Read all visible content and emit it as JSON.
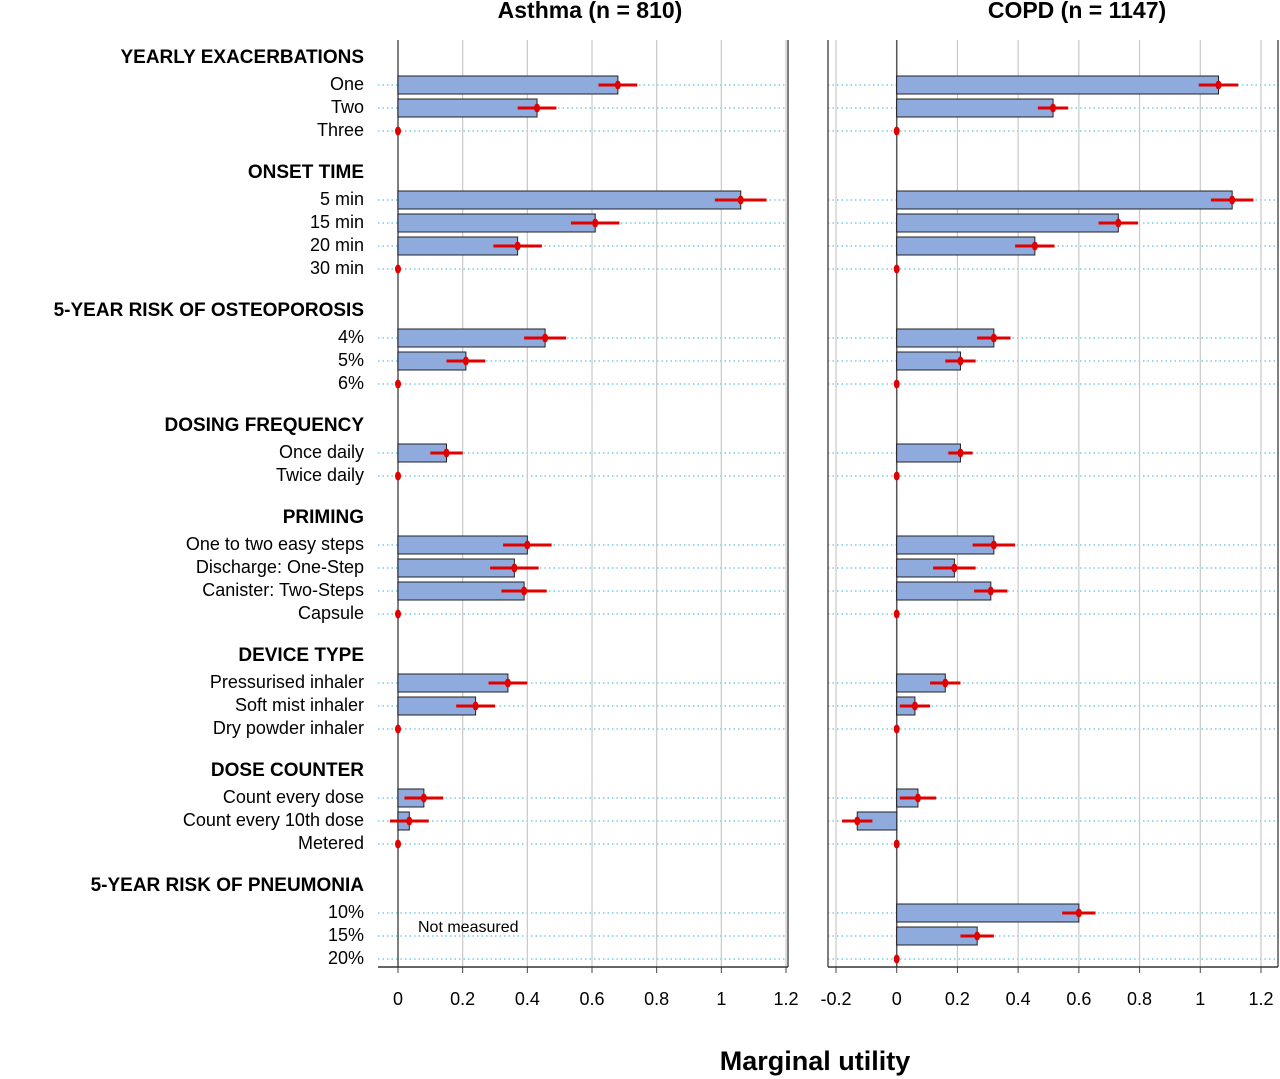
{
  "row_groups": [
    {
      "title": "YEARLY EXACERBATIONS",
      "categories": [
        "One",
        "Two",
        "Three"
      ]
    },
    {
      "title": "ONSET TIME",
      "categories": [
        "5 min",
        "15 min",
        "20 min",
        "30 min"
      ]
    },
    {
      "title": "5-YEAR RISK OF OSTEOPOROSIS",
      "categories": [
        "4%",
        "5%",
        "6%"
      ]
    },
    {
      "title": "DOSING FREQUENCY",
      "categories": [
        "Once daily",
        "Twice daily"
      ]
    },
    {
      "title": "PRIMING",
      "categories": [
        "One to two easy steps",
        "Discharge: One-Step",
        "Canister: Two-Steps",
        "Capsule"
      ]
    },
    {
      "title": "DEVICE TYPE",
      "categories": [
        "Pressurised inhaler",
        "Soft mist inhaler",
        "Dry powder inhaler"
      ]
    },
    {
      "title": "DOSE COUNTER",
      "categories": [
        "Count every dose",
        "Count every 10th dose",
        "Metered"
      ]
    },
    {
      "title": "5-YEAR RISK OF PNEUMONIA",
      "categories": [
        "10%",
        "15%",
        "20%"
      ]
    }
  ],
  "x_label": "Marginal utility",
  "chart_data": [
    {
      "type": "bar",
      "title": "Asthma (n = 810)",
      "annotation": "Not measured",
      "color": "#8faadc",
      "error_color": "#e00000",
      "values": [
        0.68,
        0.43,
        0,
        1.06,
        0.61,
        0.37,
        0,
        0.455,
        0.21,
        0,
        0.15,
        0,
        0.4,
        0.36,
        0.39,
        0,
        0.34,
        0.24,
        0,
        0.08,
        0.035,
        0,
        null,
        null,
        null
      ],
      "errors": [
        0.06,
        0.06,
        0,
        0.08,
        0.075,
        0.075,
        0,
        0.065,
        0.06,
        0,
        0.05,
        0,
        0.075,
        0.075,
        0.07,
        0,
        0.06,
        0.06,
        0,
        0.06,
        0.06,
        0,
        null,
        null,
        null
      ],
      "xlim": [
        0,
        1.2
      ],
      "xticks": [
        0,
        0.2,
        0.4,
        0.6,
        0.8,
        1,
        1.2
      ],
      "grid": true
    },
    {
      "type": "bar",
      "title": "COPD  (n = 1147)",
      "color": "#8faadc",
      "error_color": "#e00000",
      "values": [
        1.06,
        0.515,
        0,
        1.105,
        0.73,
        0.455,
        0,
        0.32,
        0.21,
        0,
        0.21,
        0,
        0.32,
        0.19,
        0.31,
        0,
        0.16,
        0.06,
        0,
        0.07,
        -0.13,
        0,
        0.6,
        0.265,
        0
      ],
      "errors": [
        0.065,
        0.05,
        0,
        0.07,
        0.065,
        0.065,
        0,
        0.055,
        0.05,
        0,
        0.04,
        0,
        0.07,
        0.07,
        0.055,
        0,
        0.05,
        0.05,
        0,
        0.06,
        0.05,
        0,
        0.055,
        0.055,
        0
      ],
      "xlim": [
        -0.2,
        1.2
      ],
      "xticks": [
        -0.2,
        0,
        0.2,
        0.4,
        0.6,
        0.8,
        1,
        1.2
      ],
      "grid": true
    }
  ]
}
